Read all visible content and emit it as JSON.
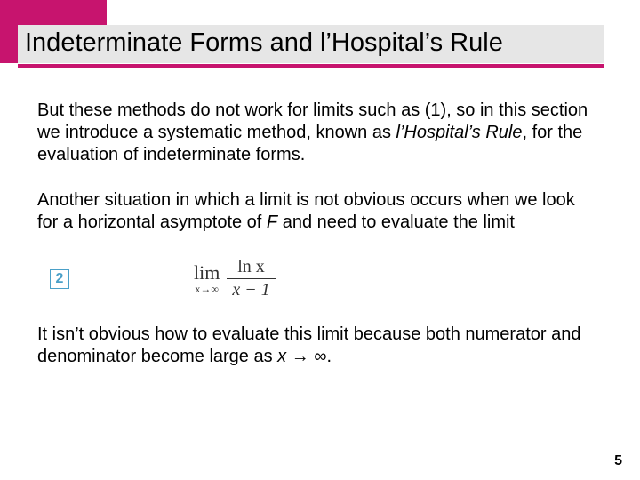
{
  "colors": {
    "accent": "#c7146e",
    "title_bg": "#e6e6e6",
    "box_border": "#4aa0c8",
    "text": "#000000",
    "eq_text": "#333333",
    "background": "#ffffff"
  },
  "layout": {
    "slide_width": 720,
    "slide_height": 540,
    "top_accent_width": 120,
    "top_accent_height": 28,
    "title_underline_width": 660,
    "title_left_block_width": 20
  },
  "title": "Indeterminate Forms and l’Hospital’s Rule",
  "paragraphs": {
    "p1_a": "But these methods do not work for limits such as (1), so in this section we introduce a systematic method, known as ",
    "p1_italic": "l’Hospital’s Rule",
    "p1_b": ", for the evaluation of indeterminate forms.",
    "p2": "Another situation in which a limit is not obvious occurs when we look for a horizontal asymptote of ",
    "p2_var": "F",
    "p2_b": " and need to evaluate the limit",
    "p3_a": "It isn’t obvious how to evaluate this limit because both numerator and denominator become large as ",
    "p3_var": "x",
    "p3_arrow": " → ",
    "p3_inf": "∞",
    "p3_end": "."
  },
  "equation": {
    "box_number": "2",
    "lim_word": "lim",
    "lim_sub": "x→∞",
    "numerator": "ln x",
    "denominator": "x − 1"
  },
  "page_number": "5"
}
